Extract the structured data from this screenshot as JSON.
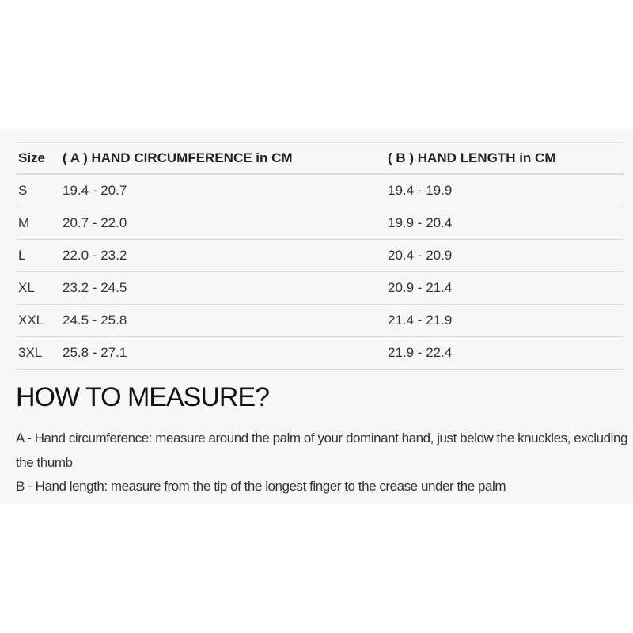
{
  "size_table": {
    "headers": [
      "Size",
      "( A ) HAND CIRCUMFERENCE in CM",
      "( B ) HAND LENGTH in CM"
    ],
    "rows": [
      [
        "S",
        "19.4 - 20.7",
        "19.4 - 19.9"
      ],
      [
        "M",
        "20.7 - 22.0",
        "19.9 - 20.4"
      ],
      [
        "L",
        "22.0 - 23.2",
        "20.4 - 20.9"
      ],
      [
        "XL",
        "23.2 - 24.5",
        "20.9 - 21.4"
      ],
      [
        "XXL",
        "24.5 - 25.8",
        "21.4 - 21.9"
      ],
      [
        "3XL",
        "25.8 - 27.1",
        "21.9 - 22.4"
      ]
    ]
  },
  "how_to": {
    "title": "HOW TO MEASURE?",
    "a": "A - Hand circumference: measure around the palm of your dominant hand, just below the knuckles, excluding the thumb",
    "b": "B - Hand length: measure from the tip of the longest finger to the crease under the palm"
  }
}
